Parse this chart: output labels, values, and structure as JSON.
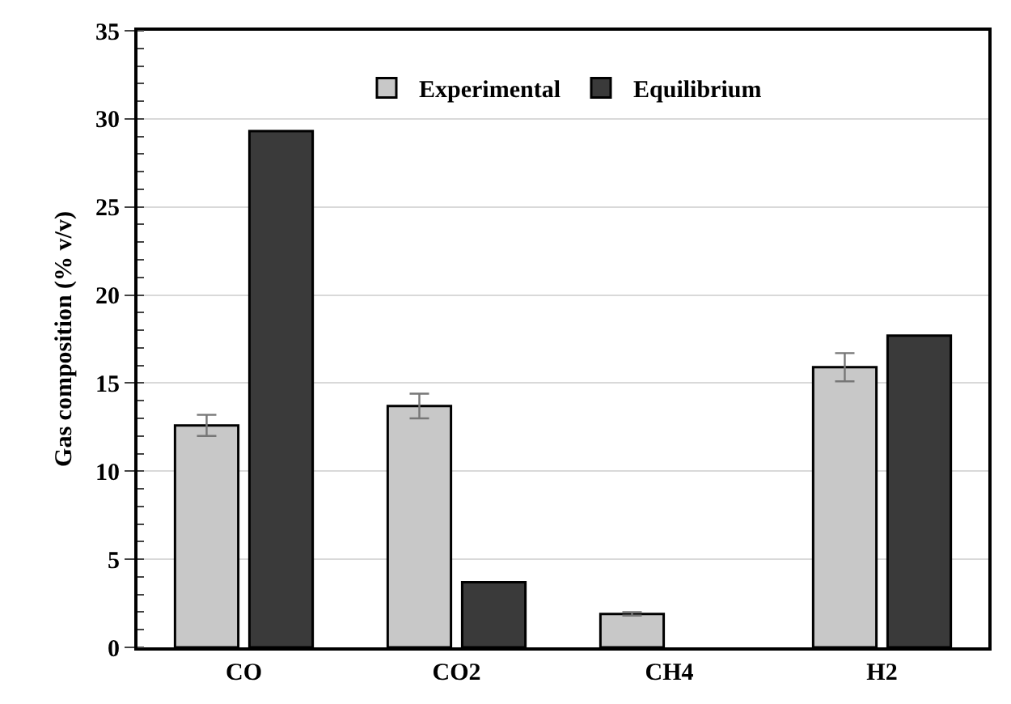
{
  "chart_data": {
    "type": "bar",
    "ylabel": "Gas composition (% v/v)",
    "categories": [
      "CO",
      "CO2",
      "CH4",
      "H2"
    ],
    "series": [
      {
        "name": "Experimental",
        "color": "#c8c8c8",
        "values": [
          12.6,
          13.7,
          1.9,
          15.9
        ],
        "errors": [
          0.6,
          0.7,
          0.1,
          0.8
        ]
      },
      {
        "name": "Equilibrium",
        "color": "#3a3a3a",
        "values": [
          29.3,
          3.7,
          null,
          17.7
        ]
      }
    ],
    "ylim": [
      0,
      35
    ],
    "yticks": [
      0,
      5,
      10,
      15,
      20,
      25,
      30,
      35
    ],
    "grid": "y",
    "legend": "top"
  }
}
